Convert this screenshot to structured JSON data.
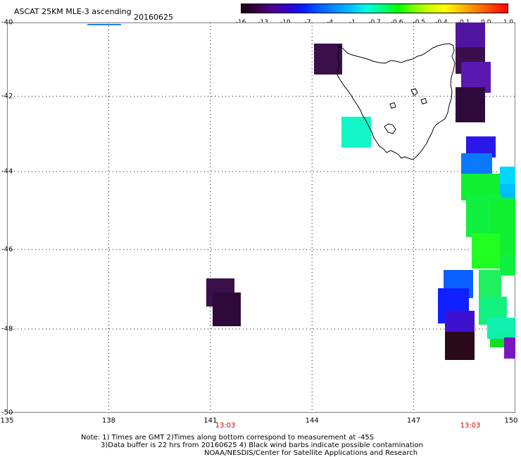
{
  "title": "ASCAT 25KM MLE-3 ascending",
  "date": "20160625",
  "colorbar": {
    "colors": [
      "#1a0010",
      "#3a004a",
      "#4d0090",
      "#3300cc",
      "#0020ff",
      "#0060ff",
      "#0090ff",
      "#00c0ff",
      "#00ffe0",
      "#00ff80",
      "#00ff00",
      "#80ff00",
      "#d0ff00",
      "#ffff00",
      "#ffc000",
      "#ff8000",
      "#ff4000",
      "#ff0000"
    ],
    "ticks": [
      "-16",
      "-13",
      "-10",
      "-7",
      "-4",
      "-1",
      "-0.7",
      "-0.6",
      "-0.5",
      "-0.4",
      "-0.1",
      "0.0",
      "1.0"
    ]
  },
  "axes": {
    "x_ticks": [
      "135",
      "138",
      "141",
      "144",
      "147",
      "150"
    ],
    "y_ticks": [
      "-40",
      "-42",
      "-44",
      "-46",
      "-48",
      "-50"
    ]
  },
  "times": [
    "13:03",
    "13:03"
  ],
  "notes": {
    "line1": "Note: 1) Times are GMT 2)Times along bottom correspond to measurement at -45S",
    "line2": "3)Data buffer is 22 hrs from 20160625 4) Black wind barbs indicate possible contamination",
    "line3": "NOAA/NESDIS/Center for Satellite Applications and Research"
  }
}
